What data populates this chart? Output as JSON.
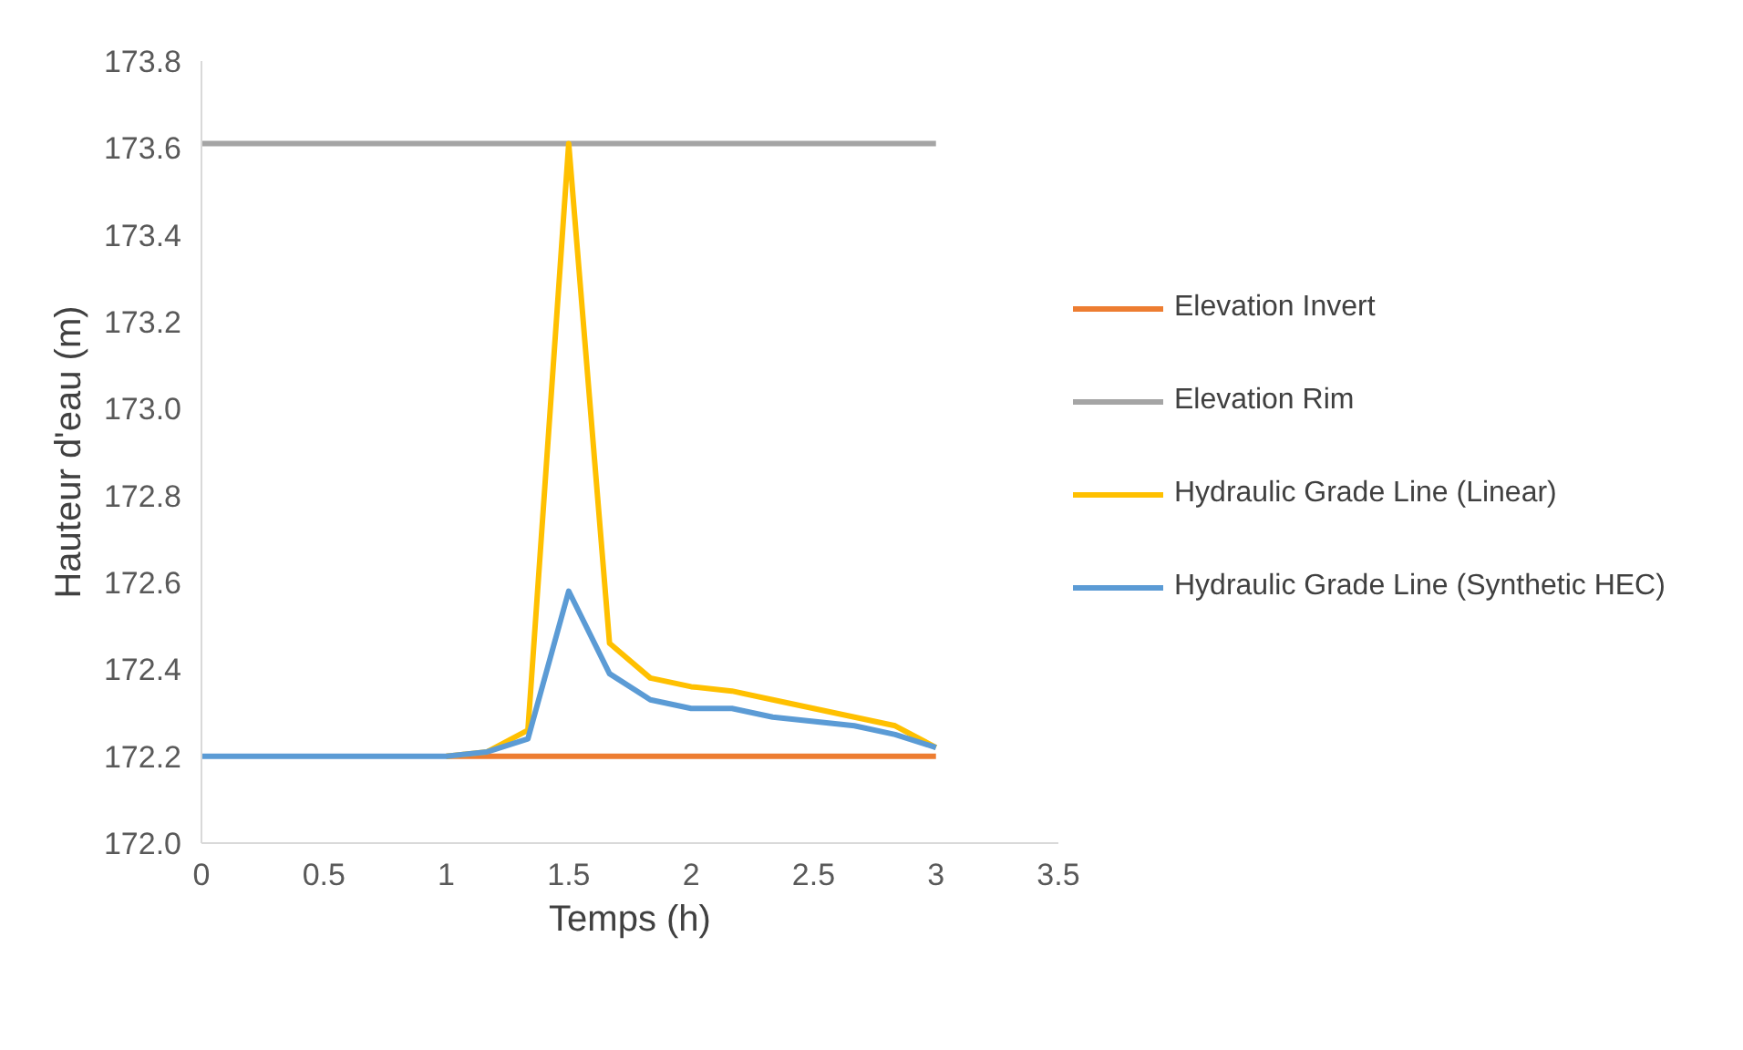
{
  "chart_data": {
    "type": "line",
    "xlabel": "Temps (h)",
    "ylabel": "Hauteur d'eau (m)",
    "x": [
      0,
      0.1667,
      0.3333,
      0.5,
      0.6667,
      0.8333,
      1.0,
      1.1667,
      1.3333,
      1.5,
      1.6667,
      1.8333,
      2.0,
      2.1667,
      2.3333,
      2.5,
      2.6667,
      2.8333,
      3.0
    ],
    "series": [
      {
        "name": "Elevation Invert",
        "color": "#ed7d31",
        "values": [
          null,
          null,
          null,
          null,
          null,
          null,
          172.2,
          172.2,
          172.2,
          172.2,
          172.2,
          172.2,
          172.2,
          172.2,
          172.2,
          172.2,
          172.2,
          172.2,
          172.2
        ]
      },
      {
        "name": "Elevation Rim",
        "color": "#a5a5a5",
        "values": [
          173.61,
          173.61,
          173.61,
          173.61,
          173.61,
          173.61,
          173.61,
          173.61,
          173.61,
          173.61,
          173.61,
          173.61,
          173.61,
          173.61,
          173.61,
          173.61,
          173.61,
          173.61,
          173.61
        ]
      },
      {
        "name": "Hydraulic Grade Line (Linear)",
        "color": "#ffc000",
        "values": [
          null,
          null,
          null,
          null,
          null,
          null,
          172.2,
          172.21,
          172.26,
          173.61,
          172.46,
          172.38,
          172.36,
          172.35,
          172.33,
          172.31,
          172.29,
          172.27,
          172.22
        ]
      },
      {
        "name": "Hydraulic Grade Line (Synthetic HEC)",
        "color": "#5b9bd5",
        "values": [
          172.2,
          172.2,
          172.2,
          172.2,
          172.2,
          172.2,
          172.2,
          172.21,
          172.24,
          172.58,
          172.39,
          172.33,
          172.31,
          172.31,
          172.29,
          172.28,
          172.27,
          172.25,
          172.22
        ]
      }
    ],
    "xlim": [
      0,
      3.5
    ],
    "xticks": [
      0,
      0.5,
      1,
      1.5,
      2,
      2.5,
      3,
      3.5
    ],
    "ylim": [
      172.0,
      173.8
    ],
    "yticks": [
      {
        "value": 172.0,
        "label": "172.0"
      },
      {
        "value": 172.2,
        "label": "172.2"
      },
      {
        "value": 172.4,
        "label": "172.4"
      },
      {
        "value": 172.6,
        "label": "172.6"
      },
      {
        "value": 172.8,
        "label": "172.8"
      },
      {
        "value": 173.0,
        "label": "173.0"
      },
      {
        "value": 173.2,
        "label": "173.2"
      },
      {
        "value": 173.4,
        "label": "173.4"
      },
      {
        "value": 173.6,
        "label": "173.6"
      },
      {
        "value": 173.8,
        "label": "173.8"
      }
    ],
    "grid": false,
    "legend": "right",
    "marker": "none",
    "line_style": "solid"
  }
}
